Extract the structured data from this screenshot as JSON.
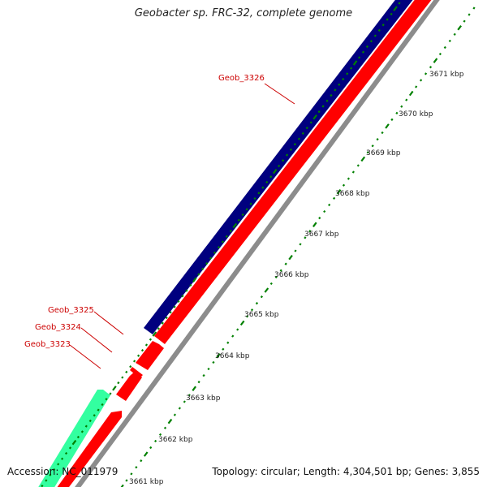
{
  "title": "Geobacter sp. FRC-32, complete genome",
  "footer": {
    "accession": "Accession: NC_011979",
    "summary": "Topology: circular; Length: 4,304,501 bp; Genes: 3,855"
  },
  "scale_labels": [
    "3661 kbp",
    "3662 kbp",
    "3663 kbp",
    "3664 kbp",
    "3665 kbp",
    "3666 kbp",
    "3667 kbp",
    "3668 kbp",
    "3669 kbp",
    "3670 kbp",
    "3671 kbp"
  ],
  "gene_labels": [
    "Geob_3326",
    "Geob_3325",
    "Geob_3324",
    "Geob_3323"
  ],
  "colors": {
    "forward_track": "#00007f",
    "reverse_track": "#ff0000",
    "rna_track": "#33ffa0",
    "tick": "#008000",
    "label": "#cc0000",
    "shadow": "#8c8c8c"
  }
}
